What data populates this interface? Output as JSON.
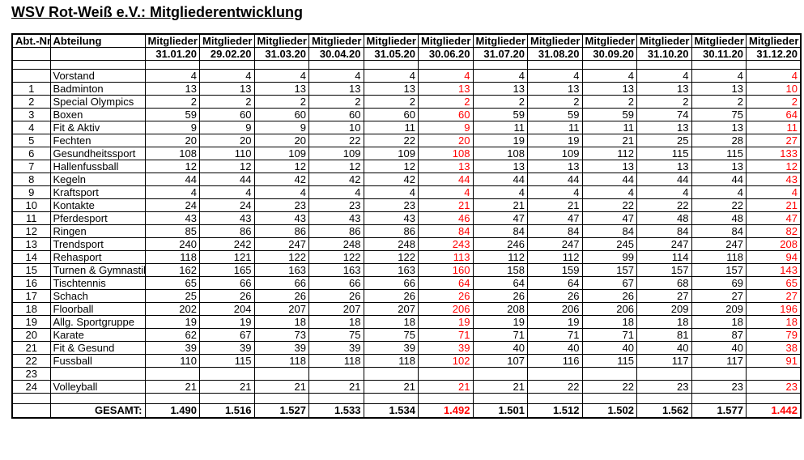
{
  "page": {
    "title": "WSV Rot-Weiß e.V.: Mitgliederentwicklung"
  },
  "colors": {
    "highlight_red": "#FF0000",
    "text": "#000000",
    "border": "#000000",
    "background": "#FFFFFF"
  },
  "table": {
    "headers": {
      "abt_nr": "Abt.-Nr.",
      "abteilung": "Abteilung",
      "mitglieder": "Mitglieder",
      "dates": [
        "31.01.20",
        "29.02.20",
        "31.03.20",
        "30.04.20",
        "31.05.20",
        "30.06.20",
        "31.07.20",
        "31.08.20",
        "30.09.20",
        "31.10.20",
        "30.11.20",
        "31.12.20"
      ]
    },
    "red_column_indexes": [
      5,
      11
    ],
    "rows": [
      {
        "nr": "",
        "name": "Vorstand",
        "values": [
          "4",
          "4",
          "4",
          "4",
          "4",
          "4",
          "4",
          "4",
          "4",
          "4",
          "4",
          "4"
        ]
      },
      {
        "nr": "1",
        "name": "Badminton",
        "values": [
          "13",
          "13",
          "13",
          "13",
          "13",
          "13",
          "13",
          "13",
          "13",
          "13",
          "13",
          "10"
        ]
      },
      {
        "nr": "2",
        "name": "Special Olympics",
        "values": [
          "2",
          "2",
          "2",
          "2",
          "2",
          "2",
          "2",
          "2",
          "2",
          "2",
          "2",
          "2"
        ]
      },
      {
        "nr": "3",
        "name": "Boxen",
        "values": [
          "59",
          "60",
          "60",
          "60",
          "60",
          "60",
          "59",
          "59",
          "59",
          "74",
          "75",
          "64"
        ]
      },
      {
        "nr": "4",
        "name": "Fit & Aktiv",
        "values": [
          "9",
          "9",
          "9",
          "10",
          "11",
          "9",
          "11",
          "11",
          "11",
          "13",
          "13",
          "11"
        ]
      },
      {
        "nr": "5",
        "name": "Fechten",
        "values": [
          "20",
          "20",
          "20",
          "22",
          "22",
          "20",
          "19",
          "19",
          "21",
          "25",
          "28",
          "27"
        ]
      },
      {
        "nr": "6",
        "name": "Gesundheitssport",
        "values": [
          "108",
          "110",
          "109",
          "109",
          "109",
          "108",
          "108",
          "109",
          "112",
          "115",
          "115",
          "133"
        ]
      },
      {
        "nr": "7",
        "name": "Hallenfussball",
        "values": [
          "12",
          "12",
          "12",
          "12",
          "12",
          "13",
          "13",
          "13",
          "13",
          "13",
          "13",
          "12"
        ]
      },
      {
        "nr": "8",
        "name": "Kegeln",
        "values": [
          "44",
          "44",
          "42",
          "42",
          "42",
          "44",
          "44",
          "44",
          "44",
          "44",
          "44",
          "43"
        ]
      },
      {
        "nr": "9",
        "name": "Kraftsport",
        "values": [
          "4",
          "4",
          "4",
          "4",
          "4",
          "4",
          "4",
          "4",
          "4",
          "4",
          "4",
          "4"
        ]
      },
      {
        "nr": "10",
        "name": "Kontakte",
        "values": [
          "24",
          "24",
          "23",
          "23",
          "23",
          "21",
          "21",
          "21",
          "22",
          "22",
          "22",
          "21"
        ]
      },
      {
        "nr": "11",
        "name": "Pferdesport",
        "values": [
          "43",
          "43",
          "43",
          "43",
          "43",
          "46",
          "47",
          "47",
          "47",
          "48",
          "48",
          "47"
        ]
      },
      {
        "nr": "12",
        "name": "Ringen",
        "values": [
          "85",
          "86",
          "86",
          "86",
          "86",
          "84",
          "84",
          "84",
          "84",
          "84",
          "84",
          "82"
        ]
      },
      {
        "nr": "13",
        "name": "Trendsport",
        "values": [
          "240",
          "242",
          "247",
          "248",
          "248",
          "243",
          "246",
          "247",
          "245",
          "247",
          "247",
          "208"
        ]
      },
      {
        "nr": "14",
        "name": "Rehasport",
        "values": [
          "118",
          "121",
          "122",
          "122",
          "122",
          "113",
          "112",
          "112",
          "99",
          "114",
          "118",
          "94"
        ]
      },
      {
        "nr": "15",
        "name": "Turnen & Gymnastik",
        "values": [
          "162",
          "165",
          "163",
          "163",
          "163",
          "160",
          "158",
          "159",
          "157",
          "157",
          "157",
          "143"
        ]
      },
      {
        "nr": "16",
        "name": "Tischtennis",
        "values": [
          "65",
          "66",
          "66",
          "66",
          "66",
          "64",
          "64",
          "64",
          "67",
          "68",
          "69",
          "65"
        ]
      },
      {
        "nr": "17",
        "name": "Schach",
        "values": [
          "25",
          "26",
          "26",
          "26",
          "26",
          "26",
          "26",
          "26",
          "26",
          "27",
          "27",
          "27"
        ]
      },
      {
        "nr": "18",
        "name": "Floorball",
        "values": [
          "202",
          "204",
          "207",
          "207",
          "207",
          "206",
          "208",
          "206",
          "206",
          "209",
          "209",
          "196"
        ]
      },
      {
        "nr": "19",
        "name": "Allg. Sportgruppe",
        "values": [
          "19",
          "19",
          "18",
          "18",
          "18",
          "19",
          "19",
          "19",
          "18",
          "18",
          "18",
          "18"
        ]
      },
      {
        "nr": "20",
        "name": "Karate",
        "values": [
          "62",
          "67",
          "73",
          "75",
          "75",
          "71",
          "71",
          "71",
          "71",
          "81",
          "87",
          "79"
        ]
      },
      {
        "nr": "21",
        "name": "Fit & Gesund",
        "values": [
          "39",
          "39",
          "39",
          "39",
          "39",
          "39",
          "40",
          "40",
          "40",
          "40",
          "40",
          "38"
        ]
      },
      {
        "nr": "22",
        "name": "Fussball",
        "values": [
          "110",
          "115",
          "118",
          "118",
          "118",
          "102",
          "107",
          "116",
          "115",
          "117",
          "117",
          "91"
        ]
      },
      {
        "nr": "23",
        "name": "",
        "values": [
          "",
          "",
          "",
          "",
          "",
          "",
          "",
          "",
          "",
          "",
          "",
          ""
        ]
      },
      {
        "nr": "24",
        "name": "Volleyball",
        "values": [
          "21",
          "21",
          "21",
          "21",
          "21",
          "21",
          "21",
          "22",
          "22",
          "23",
          "23",
          "23"
        ]
      }
    ],
    "total_row": {
      "label": "GESAMT:",
      "values": [
        "1.490",
        "1.516",
        "1.527",
        "1.533",
        "1.534",
        "1.492",
        "1.501",
        "1.512",
        "1.502",
        "1.562",
        "1.577",
        "1.442"
      ]
    }
  }
}
